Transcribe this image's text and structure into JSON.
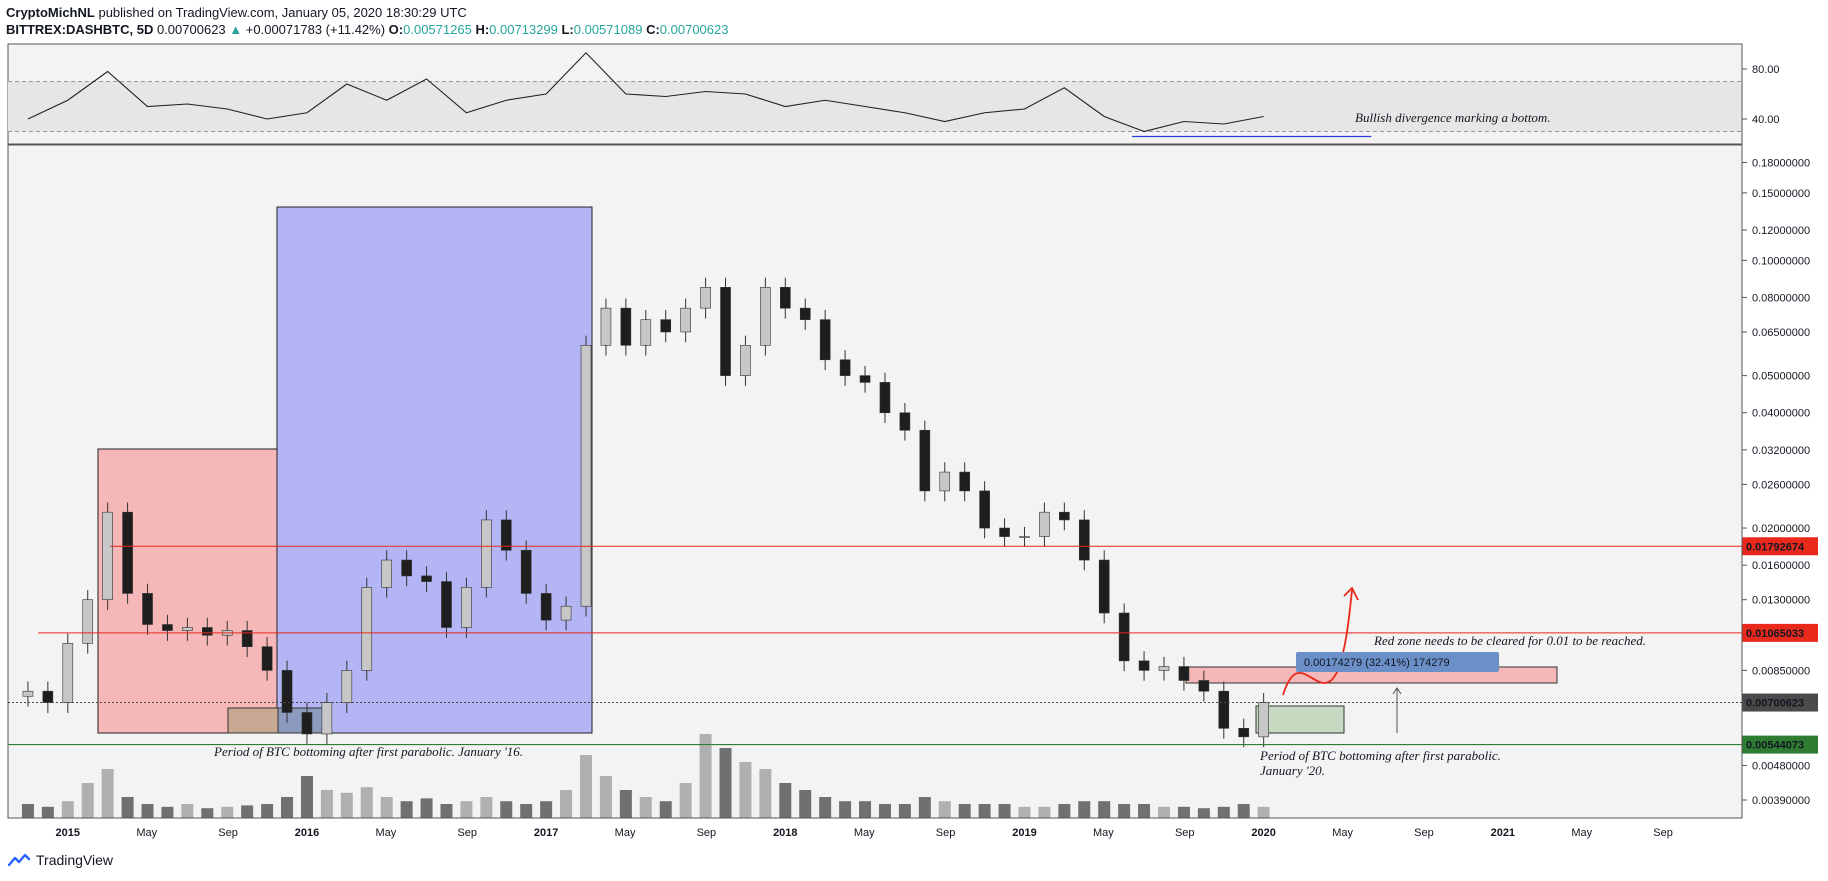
{
  "header": {
    "author": "CryptoMichNL",
    "published": "published on TradingView.com, January 05, 2020 18:30:29 UTC",
    "symbol": "BITTREX:DASHBTC, 5D",
    "last": "0.00700623",
    "change": "+0.00071783 (+11.42%)",
    "o_label": "O:",
    "o": "0.00571265",
    "h_label": "H:",
    "h": "0.00713299",
    "l_label": "L:",
    "l": "0.00571089",
    "c_label": "C:",
    "c": "0.00700623"
  },
  "footer": {
    "brand": "TradingView"
  },
  "colors": {
    "bg": "#f3f3f3",
    "red_line": "#e8291c",
    "green_line": "#2e7d32",
    "red_box": "#f5b7b7",
    "blue_box": "#b3b5f5",
    "green_box": "#c6d9c1",
    "brown_box": "#c8a892",
    "measure": "#6b8fc7",
    "price_badge": "#4a4a4a",
    "up_candle": "#c7c7c7",
    "down_candle": "#1e1e1e"
  },
  "chart_data": [
    {
      "type": "line",
      "name": "rsi",
      "y_ticks": [
        "80.00",
        "40.00"
      ],
      "ylim": [
        20,
        100
      ],
      "levels": [
        70,
        30
      ],
      "x": [
        "2014-11",
        "2015-01",
        "2015-03",
        "2015-05",
        "2015-07",
        "2015-09",
        "2015-11",
        "2016-01",
        "2016-03",
        "2016-05",
        "2016-07",
        "2016-09",
        "2016-11",
        "2017-01",
        "2017-03",
        "2017-05",
        "2017-07",
        "2017-09",
        "2017-11",
        "2018-01",
        "2018-03",
        "2018-05",
        "2018-07",
        "2018-09",
        "2018-11",
        "2019-01",
        "2019-03",
        "2019-05",
        "2019-07",
        "2019-09",
        "2019-11",
        "2020-01"
      ],
      "y": [
        40,
        55,
        78,
        50,
        52,
        48,
        40,
        45,
        68,
        55,
        72,
        45,
        55,
        60,
        93,
        60,
        58,
        62,
        60,
        50,
        55,
        50,
        45,
        38,
        45,
        48,
        65,
        42,
        30,
        38,
        36,
        42
      ],
      "annotation": "Bullish divergence marking a bottom."
    },
    {
      "type": "candlestick",
      "name": "price",
      "scale": "log",
      "ylim": [
        0.0035,
        0.2
      ],
      "y_ticks": [
        "0.18000000",
        "0.15000000",
        "0.12000000",
        "0.10000000",
        "0.08000000",
        "0.06500000",
        "0.05000000",
        "0.04000000",
        "0.03200000",
        "0.02600000",
        "0.02000000",
        "0.01600000",
        "0.01300000",
        "0.00850000",
        "0.00480000",
        "0.00390000"
      ],
      "x_ticks": [
        "2015",
        "May",
        "Sep",
        "2016",
        "May",
        "Sep",
        "2017",
        "May",
        "Sep",
        "2018",
        "May",
        "Sep",
        "2019",
        "May",
        "Sep",
        "2020",
        "May",
        "Sep",
        "2021",
        "May",
        "Sep"
      ],
      "x": [
        "2014-11",
        "2014-12",
        "2015-01",
        "2015-02",
        "2015-03",
        "2015-04",
        "2015-05",
        "2015-06",
        "2015-07",
        "2015-08",
        "2015-09",
        "2015-10",
        "2015-11",
        "2015-12",
        "2016-01",
        "2016-02",
        "2016-03",
        "2016-04",
        "2016-05",
        "2016-06",
        "2016-07",
        "2016-08",
        "2016-09",
        "2016-10",
        "2016-11",
        "2016-12",
        "2017-01",
        "2017-02",
        "2017-03",
        "2017-04",
        "2017-05",
        "2017-06",
        "2017-07",
        "2017-08",
        "2017-09",
        "2017-10",
        "2017-11",
        "2017-12",
        "2018-01",
        "2018-02",
        "2018-03",
        "2018-04",
        "2018-05",
        "2018-06",
        "2018-07",
        "2018-08",
        "2018-09",
        "2018-10",
        "2018-11",
        "2018-12",
        "2019-01",
        "2019-02",
        "2019-03",
        "2019-04",
        "2019-05",
        "2019-06",
        "2019-07",
        "2019-08",
        "2019-09",
        "2019-10",
        "2019-11",
        "2019-12",
        "2020-01"
      ],
      "close": [
        0.0075,
        0.007,
        0.01,
        0.013,
        0.022,
        0.0135,
        0.0112,
        0.0108,
        0.011,
        0.0105,
        0.0108,
        0.0098,
        0.0085,
        0.0066,
        0.0058,
        0.007,
        0.0085,
        0.014,
        0.0165,
        0.015,
        0.0145,
        0.011,
        0.014,
        0.021,
        0.0175,
        0.0135,
        0.0115,
        0.0125,
        0.06,
        0.075,
        0.06,
        0.07,
        0.065,
        0.075,
        0.085,
        0.05,
        0.06,
        0.085,
        0.075,
        0.07,
        0.055,
        0.05,
        0.048,
        0.04,
        0.036,
        0.025,
        0.028,
        0.025,
        0.02,
        0.019,
        0.019,
        0.022,
        0.021,
        0.0165,
        0.012,
        0.009,
        0.0085,
        0.0087,
        0.008,
        0.0075,
        0.006,
        0.0057,
        0.007
      ],
      "volume": [
        0.1,
        0.08,
        0.12,
        0.25,
        0.35,
        0.15,
        0.1,
        0.08,
        0.1,
        0.07,
        0.08,
        0.09,
        0.1,
        0.15,
        0.3,
        0.2,
        0.18,
        0.22,
        0.15,
        0.12,
        0.14,
        0.1,
        0.12,
        0.15,
        0.12,
        0.1,
        0.12,
        0.2,
        0.45,
        0.3,
        0.2,
        0.15,
        0.12,
        0.25,
        0.6,
        0.5,
        0.4,
        0.35,
        0.25,
        0.2,
        0.15,
        0.12,
        0.12,
        0.1,
        0.1,
        0.15,
        0.12,
        0.1,
        0.1,
        0.1,
        0.08,
        0.08,
        0.1,
        0.12,
        0.12,
        0.1,
        0.1,
        0.08,
        0.08,
        0.07,
        0.08,
        0.1,
        0.08
      ],
      "horizontal_lines": [
        {
          "value": 0.01792674,
          "label": "0.01792674",
          "color": "#e8291c"
        },
        {
          "value": 0.01065033,
          "label": "0.01065033",
          "color": "#e8291c"
        },
        {
          "value": 0.00700623,
          "label": "0.00700623",
          "color": "#4a4a4a"
        },
        {
          "value": 0.00544073,
          "label": "0.00544073",
          "color": "#2e7d32"
        }
      ],
      "measure": "0.00174279 (32.41%) 174279",
      "annotations": [
        "Period of BTC bottoming after first parabolic. January '16.",
        "Period of BTC bottoming after first parabolic.",
        "January '20.",
        "Red zone needs to be cleared for 0.01 to be reached."
      ]
    }
  ]
}
